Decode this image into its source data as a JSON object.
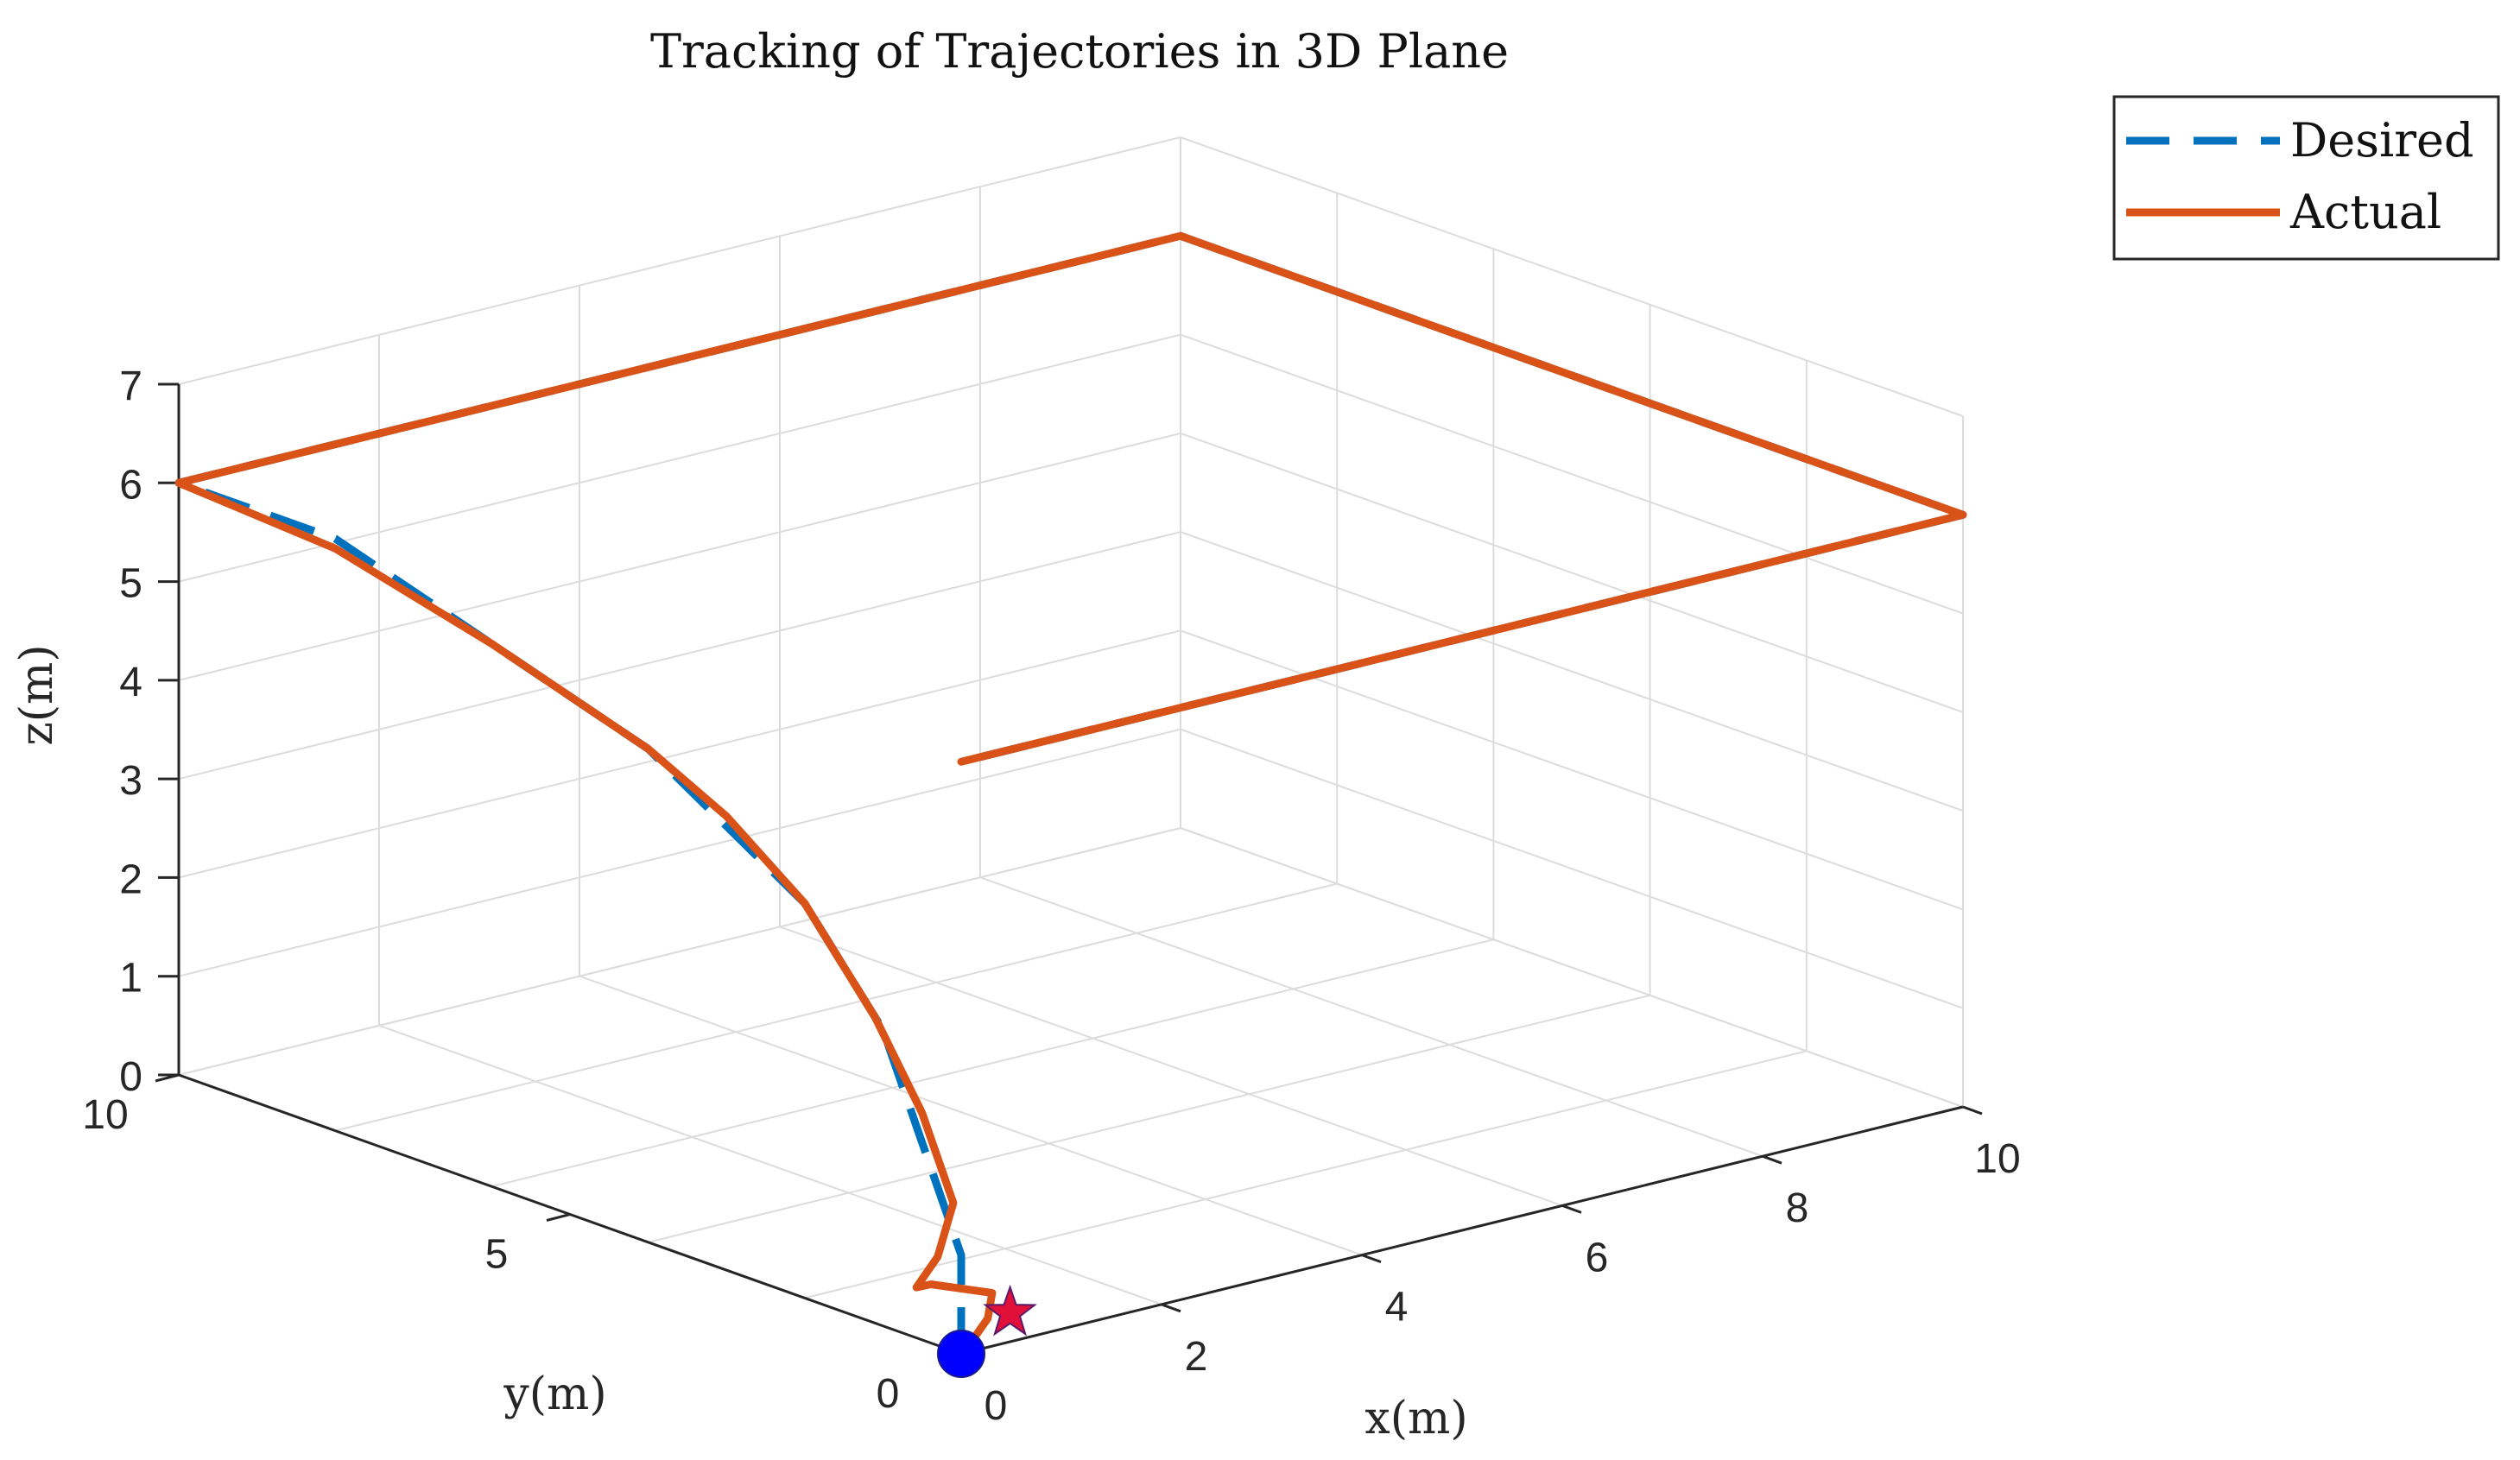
{
  "chart_data": {
    "type": "line",
    "title": "Tracking of Trajectories in 3D Plane",
    "xlabel": "x(m)",
    "ylabel": "y(m)",
    "zlabel": "z(m)",
    "xlim": [
      0,
      10
    ],
    "ylim": [
      0,
      10
    ],
    "zlim": [
      0,
      7
    ],
    "xticks": [
      "0",
      "2",
      "4",
      "6",
      "8",
      "10"
    ],
    "yticks": [
      "0",
      "5",
      "10"
    ],
    "zticks": [
      "0",
      "1",
      "2",
      "3",
      "4",
      "5",
      "6",
      "7"
    ],
    "grid": true,
    "legend_position": "top-right",
    "series": [
      {
        "name": "Desired",
        "style": "dashed",
        "color": "#0072BD",
        "points": [
          [
            0,
            0,
            0
          ],
          [
            0,
            0,
            1
          ],
          [
            0,
            0.5,
            2
          ],
          [
            0,
            1,
            3
          ],
          [
            0,
            2,
            4
          ],
          [
            0,
            4,
            5
          ],
          [
            0,
            8,
            6
          ],
          [
            0,
            10,
            6
          ],
          [
            5,
            10,
            6
          ],
          [
            10,
            10,
            6
          ],
          [
            10,
            5,
            6
          ],
          [
            10,
            0,
            6
          ],
          [
            5,
            0,
            6
          ],
          [
            0,
            0,
            6
          ]
        ]
      },
      {
        "name": "Actual",
        "style": "solid",
        "color": "#D95319",
        "points": [
          [
            0.3,
            0.2,
            0.05
          ],
          [
            0.5,
            0.3,
            0.15
          ],
          [
            0.7,
            0.5,
            0.3
          ],
          [
            0.4,
            0.9,
            0.35
          ],
          [
            0.1,
            0.7,
            0.45
          ],
          [
            0,
            0.3,
            0.9
          ],
          [
            0,
            0.1,
            1.5
          ],
          [
            0,
            0.5,
            2.3
          ],
          [
            0,
            1.1,
            3.1
          ],
          [
            0,
            2,
            4
          ],
          [
            0,
            3,
            4.6
          ],
          [
            0,
            4,
            5
          ],
          [
            0,
            6,
            5.5
          ],
          [
            0,
            8,
            5.9
          ],
          [
            0,
            10,
            6
          ],
          [
            5,
            10,
            6
          ],
          [
            10,
            10,
            6
          ],
          [
            10,
            5,
            6
          ],
          [
            10,
            0,
            6
          ],
          [
            5,
            0,
            6
          ],
          [
            0,
            0,
            6
          ]
        ]
      }
    ],
    "markers": [
      {
        "kind": "circle",
        "color": "#0000FF",
        "position": [
          0,
          0,
          0
        ]
      },
      {
        "kind": "star",
        "color": "#E0103A",
        "position": [
          0.8,
          0.4,
          0.1
        ]
      }
    ]
  }
}
